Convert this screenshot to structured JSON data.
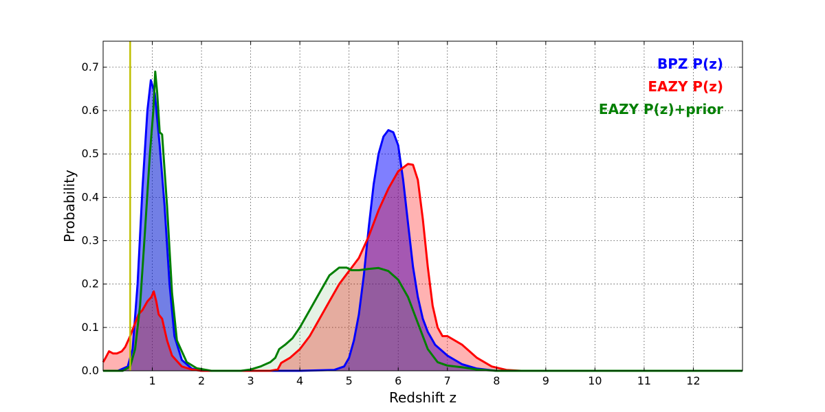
{
  "chart_data": {
    "type": "area",
    "xlabel": "Redshift z",
    "ylabel": "Probability",
    "xlim": [
      0,
      13
    ],
    "ylim": [
      0,
      0.76
    ],
    "x_ticks": [
      1,
      2,
      3,
      4,
      5,
      6,
      7,
      8,
      9,
      10,
      11,
      12
    ],
    "x_tick_labels": [
      "1",
      "2",
      "3",
      "4",
      "5",
      "6",
      "7",
      "8",
      "9",
      "10",
      "11",
      "12"
    ],
    "y_ticks": [
      0.0,
      0.1,
      0.2,
      0.3,
      0.4,
      0.5,
      0.6,
      0.7
    ],
    "y_tick_labels": [
      "0.0",
      "0.1",
      "0.2",
      "0.3",
      "0.4",
      "0.5",
      "0.6",
      "0.7"
    ],
    "grid": true,
    "legend_position": "top-right",
    "reference_line": {
      "x": 0.55,
      "color": "#bfbf00"
    },
    "series": [
      {
        "name": "BPZ P(z)",
        "color": "#0000ff",
        "points": [
          [
            0.0,
            0.0
          ],
          [
            0.3,
            0.0
          ],
          [
            0.5,
            0.01
          ],
          [
            0.6,
            0.05
          ],
          [
            0.7,
            0.2
          ],
          [
            0.8,
            0.42
          ],
          [
            0.9,
            0.6
          ],
          [
            0.97,
            0.67
          ],
          [
            1.05,
            0.64
          ],
          [
            1.15,
            0.52
          ],
          [
            1.25,
            0.38
          ],
          [
            1.35,
            0.2
          ],
          [
            1.45,
            0.08
          ],
          [
            1.6,
            0.025
          ],
          [
            1.8,
            0.005
          ],
          [
            2.0,
            0.0
          ],
          [
            4.0,
            0.0
          ],
          [
            4.7,
            0.002
          ],
          [
            4.9,
            0.01
          ],
          [
            5.0,
            0.03
          ],
          [
            5.1,
            0.07
          ],
          [
            5.2,
            0.13
          ],
          [
            5.3,
            0.22
          ],
          [
            5.4,
            0.33
          ],
          [
            5.5,
            0.43
          ],
          [
            5.6,
            0.5
          ],
          [
            5.7,
            0.54
          ],
          [
            5.8,
            0.555
          ],
          [
            5.9,
            0.55
          ],
          [
            6.0,
            0.52
          ],
          [
            6.1,
            0.44
          ],
          [
            6.2,
            0.34
          ],
          [
            6.3,
            0.24
          ],
          [
            6.4,
            0.17
          ],
          [
            6.5,
            0.12
          ],
          [
            6.6,
            0.09
          ],
          [
            6.75,
            0.06
          ],
          [
            7.0,
            0.035
          ],
          [
            7.3,
            0.015
          ],
          [
            7.6,
            0.005
          ],
          [
            8.0,
            0.0
          ],
          [
            13.0,
            0.0
          ]
        ]
      },
      {
        "name": "EAZY P(z)",
        "color": "#ff0000",
        "points": [
          [
            0.0,
            0.02
          ],
          [
            0.05,
            0.03
          ],
          [
            0.12,
            0.045
          ],
          [
            0.2,
            0.04
          ],
          [
            0.28,
            0.04
          ],
          [
            0.38,
            0.045
          ],
          [
            0.45,
            0.055
          ],
          [
            0.55,
            0.08
          ],
          [
            0.65,
            0.11
          ],
          [
            0.72,
            0.13
          ],
          [
            0.8,
            0.14
          ],
          [
            0.9,
            0.16
          ],
          [
            0.98,
            0.17
          ],
          [
            1.03,
            0.183
          ],
          [
            1.08,
            0.16
          ],
          [
            1.13,
            0.13
          ],
          [
            1.2,
            0.12
          ],
          [
            1.3,
            0.07
          ],
          [
            1.4,
            0.035
          ],
          [
            1.6,
            0.01
          ],
          [
            1.8,
            0.003
          ],
          [
            2.0,
            0.0
          ],
          [
            3.4,
            0.0
          ],
          [
            3.55,
            0.003
          ],
          [
            3.62,
            0.018
          ],
          [
            3.8,
            0.03
          ],
          [
            4.0,
            0.05
          ],
          [
            4.2,
            0.08
          ],
          [
            4.4,
            0.12
          ],
          [
            4.6,
            0.16
          ],
          [
            4.8,
            0.2
          ],
          [
            5.0,
            0.23
          ],
          [
            5.2,
            0.26
          ],
          [
            5.4,
            0.31
          ],
          [
            5.6,
            0.37
          ],
          [
            5.8,
            0.42
          ],
          [
            6.0,
            0.46
          ],
          [
            6.2,
            0.477
          ],
          [
            6.3,
            0.475
          ],
          [
            6.4,
            0.44
          ],
          [
            6.5,
            0.35
          ],
          [
            6.6,
            0.24
          ],
          [
            6.7,
            0.15
          ],
          [
            6.8,
            0.1
          ],
          [
            6.9,
            0.08
          ],
          [
            7.0,
            0.08
          ],
          [
            7.3,
            0.06
          ],
          [
            7.6,
            0.03
          ],
          [
            7.9,
            0.01
          ],
          [
            8.2,
            0.002
          ],
          [
            8.5,
            0.0
          ],
          [
            13.0,
            0.0
          ]
        ]
      },
      {
        "name": "EAZY P(z)+prior",
        "color": "#007f00",
        "points": [
          [
            0.0,
            0.0
          ],
          [
            0.4,
            0.0
          ],
          [
            0.55,
            0.01
          ],
          [
            0.65,
            0.05
          ],
          [
            0.75,
            0.15
          ],
          [
            0.85,
            0.32
          ],
          [
            0.95,
            0.5
          ],
          [
            1.02,
            0.6
          ],
          [
            1.06,
            0.69
          ],
          [
            1.1,
            0.64
          ],
          [
            1.15,
            0.55
          ],
          [
            1.2,
            0.545
          ],
          [
            1.3,
            0.38
          ],
          [
            1.4,
            0.18
          ],
          [
            1.5,
            0.07
          ],
          [
            1.7,
            0.02
          ],
          [
            1.9,
            0.006
          ],
          [
            2.2,
            0.0
          ],
          [
            2.8,
            0.0
          ],
          [
            3.0,
            0.003
          ],
          [
            3.2,
            0.01
          ],
          [
            3.4,
            0.02
          ],
          [
            3.5,
            0.03
          ],
          [
            3.58,
            0.05
          ],
          [
            3.7,
            0.06
          ],
          [
            3.85,
            0.075
          ],
          [
            4.0,
            0.1
          ],
          [
            4.2,
            0.14
          ],
          [
            4.4,
            0.18
          ],
          [
            4.6,
            0.22
          ],
          [
            4.8,
            0.238
          ],
          [
            4.95,
            0.238
          ],
          [
            5.05,
            0.232
          ],
          [
            5.2,
            0.232
          ],
          [
            5.4,
            0.235
          ],
          [
            5.6,
            0.237
          ],
          [
            5.8,
            0.23
          ],
          [
            6.0,
            0.21
          ],
          [
            6.2,
            0.17
          ],
          [
            6.4,
            0.11
          ],
          [
            6.6,
            0.05
          ],
          [
            6.8,
            0.02
          ],
          [
            7.0,
            0.012
          ],
          [
            7.3,
            0.008
          ],
          [
            7.6,
            0.003
          ],
          [
            8.0,
            0.0
          ],
          [
            13.0,
            0.0
          ]
        ]
      }
    ]
  }
}
